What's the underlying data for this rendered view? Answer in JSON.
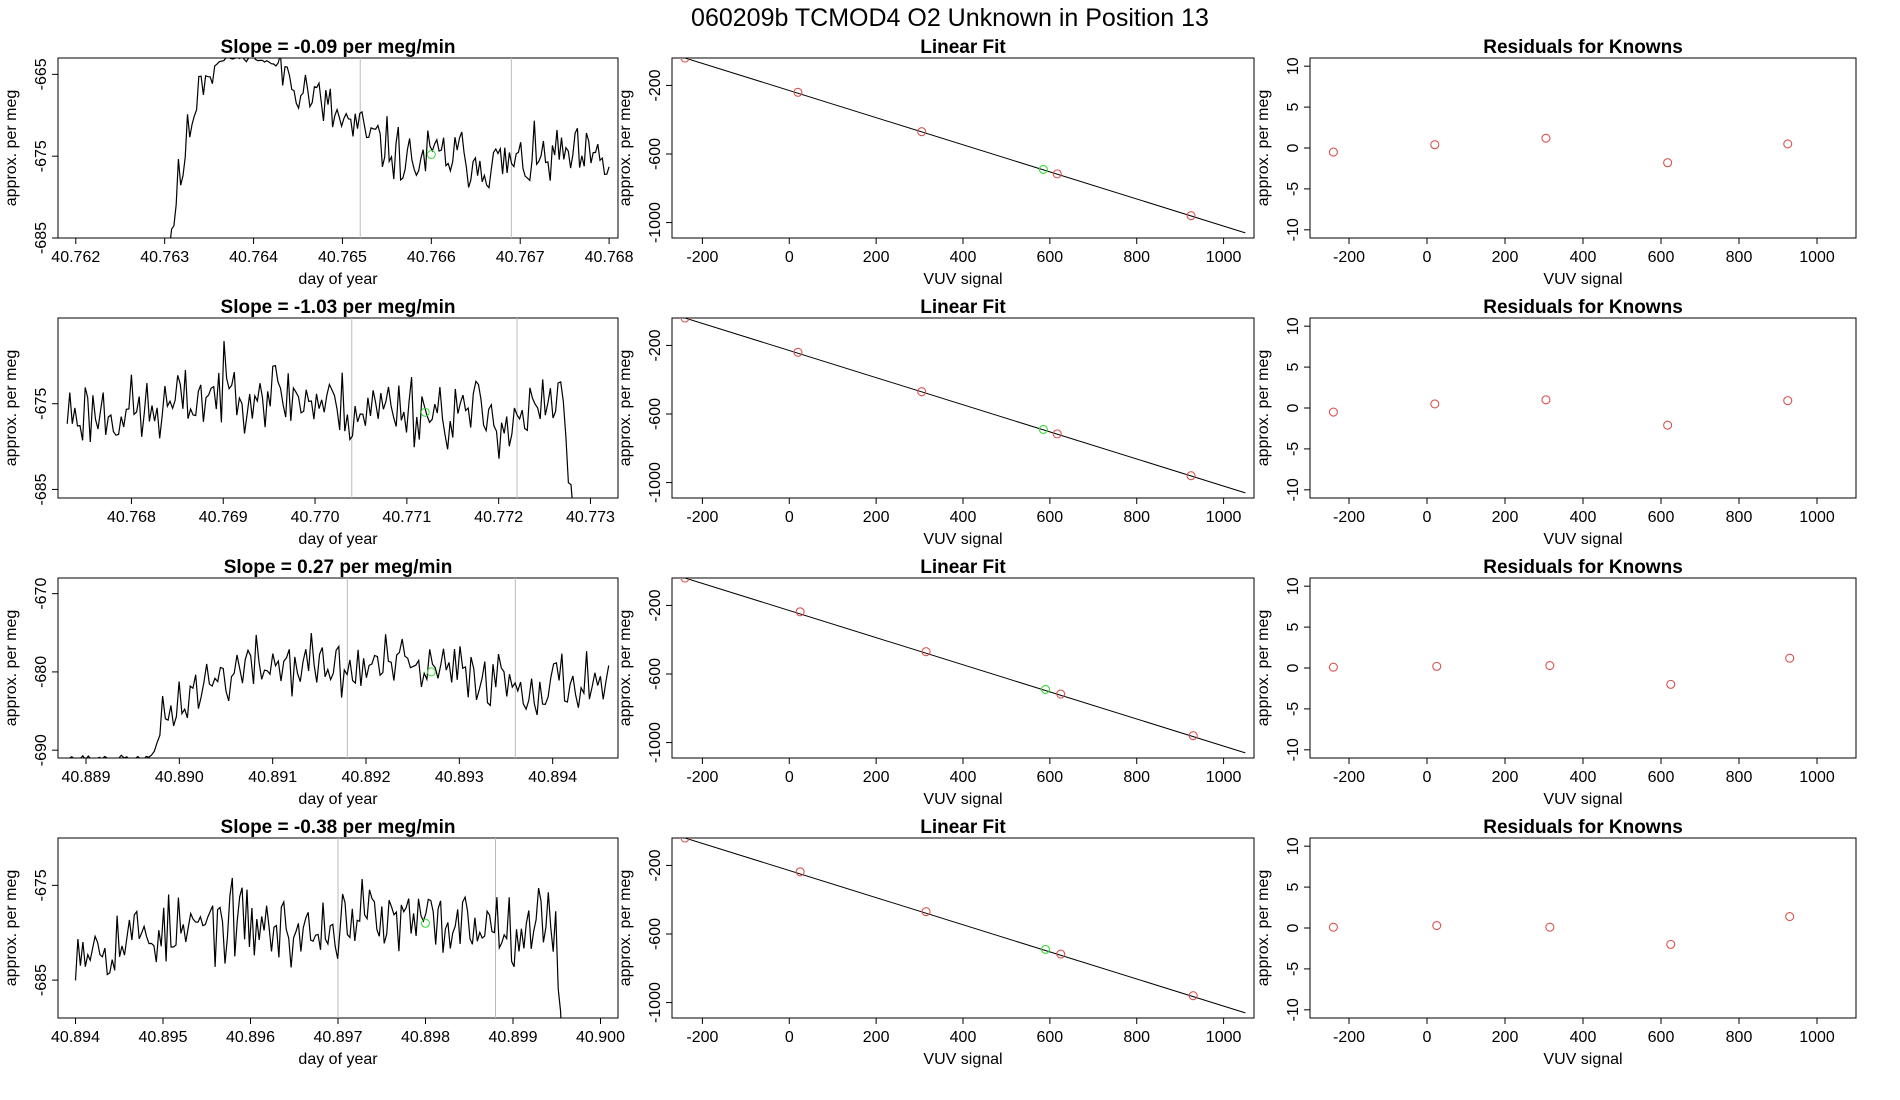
{
  "page_title": "060209b     TCMOD4    O2 Unknown in Position  13",
  "colors": {
    "known": "#d9534f",
    "unknown": "#33dd33",
    "line": "#000000",
    "vline": "#bbbbbb"
  },
  "chart_data": [
    {
      "type": "line",
      "kind": "trace",
      "title": "Slope =  -0.09  per meg/min",
      "xlabel": "day of year",
      "ylabel": "approx. per meg",
      "xlim": [
        40.7618,
        40.7681
      ],
      "ylim": [
        -685,
        -663
      ],
      "xticks": [
        "40.762",
        "40.763",
        "40.764",
        "40.765",
        "40.766",
        "40.767",
        "40.768"
      ],
      "yticks": [
        "-685",
        "-675",
        "-665"
      ],
      "vlines": [
        40.7652,
        40.7669
      ],
      "marker": [
        40.766,
        -674.8
      ],
      "x_start": 40.7629,
      "x_end": 40.768,
      "levels": [
        [
          40.7629,
          -700
        ],
        [
          40.7631,
          -682
        ],
        [
          40.7634,
          -665
        ],
        [
          40.7637,
          -663
        ],
        [
          40.764,
          -663
        ],
        [
          40.7643,
          -664
        ],
        [
          40.7646,
          -667
        ],
        [
          40.7649,
          -670
        ],
        [
          40.7652,
          -672
        ],
        [
          40.7655,
          -674
        ],
        [
          40.7658,
          -676
        ],
        [
          40.766,
          -675
        ],
        [
          40.7663,
          -675
        ],
        [
          40.7667,
          -676
        ],
        [
          40.767,
          -676
        ],
        [
          40.7675,
          -675
        ],
        [
          40.768,
          -676
        ]
      ],
      "noise": 2.2,
      "seed": 11
    },
    {
      "type": "scatter",
      "kind": "fit",
      "title": "Linear Fit",
      "xlabel": "VUV signal",
      "ylabel": "approx. per meg",
      "xlim": [
        -270,
        1070
      ],
      "ylim": [
        -1090,
        -40
      ],
      "xticks": [
        -200,
        0,
        200,
        400,
        600,
        800,
        1000
      ],
      "yticks": [
        -1000,
        -600,
        -200
      ],
      "line": [
        [
          -240,
          -40
        ],
        [
          1050,
          -1060
        ]
      ],
      "known": [
        [
          -240,
          -40
        ],
        [
          20,
          -240
        ],
        [
          305,
          -470
        ],
        [
          617,
          -716
        ],
        [
          925,
          -960
        ]
      ],
      "unknown": [
        [
          585,
          -690
        ]
      ]
    },
    {
      "type": "scatter",
      "kind": "resid",
      "title": "Residuals for Knowns",
      "xlabel": "VUV signal",
      "ylabel": "approx. per meg",
      "xlim": [
        -300,
        1100
      ],
      "ylim": [
        -11,
        11
      ],
      "xticks": [
        -200,
        0,
        200,
        400,
        600,
        800,
        1000
      ],
      "yticks": [
        -10,
        -5,
        0,
        5,
        10
      ],
      "points": [
        [
          -240,
          -0.5
        ],
        [
          20,
          0.4
        ],
        [
          305,
          1.2
        ],
        [
          617,
          -1.8
        ],
        [
          925,
          0.5
        ]
      ]
    },
    {
      "type": "line",
      "kind": "trace",
      "title": "Slope =  -1.03  per meg/min",
      "xlabel": "day of year",
      "ylabel": "approx. per meg",
      "xlim": [
        40.7672,
        40.7733
      ],
      "ylim": [
        -686,
        -665
      ],
      "xticks": [
        "40.768",
        "40.769",
        "40.770",
        "40.771",
        "40.772",
        "40.773"
      ],
      "yticks": [
        "-685",
        "-675"
      ],
      "vlines": [
        40.7704,
        40.7722
      ],
      "marker": [
        40.7712,
        -676
      ],
      "x_start": 40.7673,
      "x_end": 40.7729,
      "levels": [
        [
          40.7673,
          -676
        ],
        [
          40.7678,
          -676
        ],
        [
          40.7683,
          -676
        ],
        [
          40.7688,
          -674
        ],
        [
          40.7692,
          -673
        ],
        [
          40.7697,
          -674
        ],
        [
          40.7701,
          -675
        ],
        [
          40.7705,
          -676
        ],
        [
          40.7709,
          -675
        ],
        [
          40.7713,
          -676
        ],
        [
          40.7717,
          -676
        ],
        [
          40.7721,
          -677
        ],
        [
          40.7724,
          -676
        ],
        [
          40.7727,
          -675
        ],
        [
          40.7728,
          -686
        ],
        [
          40.7729,
          -700
        ]
      ],
      "noise": 2.6,
      "seed": 23
    },
    {
      "type": "scatter",
      "kind": "fit",
      "title": "Linear Fit",
      "xlabel": "VUV signal",
      "ylabel": "approx. per meg",
      "xlim": [
        -270,
        1070
      ],
      "ylim": [
        -1090,
        -40
      ],
      "xticks": [
        -200,
        0,
        200,
        400,
        600,
        800,
        1000
      ],
      "yticks": [
        -1000,
        -600,
        -200
      ],
      "line": [
        [
          -240,
          -40
        ],
        [
          1050,
          -1060
        ]
      ],
      "known": [
        [
          -240,
          -40
        ],
        [
          20,
          -240
        ],
        [
          305,
          -470
        ],
        [
          617,
          -716
        ],
        [
          925,
          -960
        ]
      ],
      "unknown": [
        [
          585,
          -690
        ]
      ]
    },
    {
      "type": "scatter",
      "kind": "resid",
      "title": "Residuals for Knowns",
      "xlabel": "VUV signal",
      "ylabel": "approx. per meg",
      "xlim": [
        -300,
        1100
      ],
      "ylim": [
        -11,
        11
      ],
      "xticks": [
        -200,
        0,
        200,
        400,
        600,
        800,
        1000
      ],
      "yticks": [
        -10,
        -5,
        0,
        5,
        10
      ],
      "points": [
        [
          -240,
          -0.5
        ],
        [
          20,
          0.5
        ],
        [
          305,
          1.0
        ],
        [
          617,
          -2.1
        ],
        [
          925,
          0.9
        ]
      ]
    },
    {
      "type": "line",
      "kind": "trace",
      "title": "Slope =  0.27  per meg/min",
      "xlabel": "day of year",
      "ylabel": "approx. per meg",
      "xlim": [
        40.8887,
        40.8947
      ],
      "ylim": [
        -691,
        -668
      ],
      "xticks": [
        "40.889",
        "40.890",
        "40.891",
        "40.892",
        "40.893",
        "40.894"
      ],
      "yticks": [
        "-690",
        "-680",
        "-670"
      ],
      "vlines": [
        40.8918,
        40.8936
      ],
      "marker": [
        40.8927,
        -680
      ],
      "x_start": 40.8887,
      "x_end": 40.8946,
      "levels": [
        [
          40.8887,
          -691
        ],
        [
          40.8897,
          -691
        ],
        [
          40.8898,
          -688
        ],
        [
          40.8899,
          -685
        ],
        [
          40.8902,
          -682
        ],
        [
          40.8906,
          -680
        ],
        [
          40.891,
          -679
        ],
        [
          40.8914,
          -679
        ],
        [
          40.8918,
          -680
        ],
        [
          40.8922,
          -679
        ],
        [
          40.8927,
          -680
        ],
        [
          40.8931,
          -680
        ],
        [
          40.8935,
          -681
        ],
        [
          40.8939,
          -682
        ],
        [
          40.8943,
          -681
        ],
        [
          40.8946,
          -681
        ]
      ],
      "noise": 2.4,
      "seed": 37
    },
    {
      "type": "scatter",
      "kind": "fit",
      "title": "Linear Fit",
      "xlabel": "VUV signal",
      "ylabel": "approx. per meg",
      "xlim": [
        -270,
        1070
      ],
      "ylim": [
        -1090,
        -40
      ],
      "xticks": [
        -200,
        0,
        200,
        400,
        600,
        800,
        1000
      ],
      "yticks": [
        -1000,
        -600,
        -200
      ],
      "line": [
        [
          -240,
          -40
        ],
        [
          1050,
          -1060
        ]
      ],
      "known": [
        [
          -240,
          -40
        ],
        [
          25,
          -237
        ],
        [
          315,
          -470
        ],
        [
          625,
          -717
        ],
        [
          930,
          -960
        ]
      ],
      "unknown": [
        [
          590,
          -690
        ]
      ]
    },
    {
      "type": "scatter",
      "kind": "resid",
      "title": "Residuals for Knowns",
      "xlabel": "VUV signal",
      "ylabel": "approx. per meg",
      "xlim": [
        -300,
        1100
      ],
      "ylim": [
        -11,
        11
      ],
      "xticks": [
        -200,
        0,
        200,
        400,
        600,
        800,
        1000
      ],
      "yticks": [
        -10,
        -5,
        0,
        5,
        10
      ],
      "points": [
        [
          -240,
          0.1
        ],
        [
          25,
          0.2
        ],
        [
          315,
          0.3
        ],
        [
          625,
          -2.0
        ],
        [
          930,
          1.2
        ]
      ]
    },
    {
      "type": "line",
      "kind": "trace",
      "title": "Slope =  -0.38  per meg/min",
      "xlabel": "day of year",
      "ylabel": "approx. per meg",
      "xlim": [
        40.8938,
        40.9002
      ],
      "ylim": [
        -689,
        -670
      ],
      "xticks": [
        "40.894",
        "40.895",
        "40.896",
        "40.897",
        "40.898",
        "40.899",
        "40.900"
      ],
      "yticks": [
        "-685",
        "-675"
      ],
      "vlines": [
        40.897,
        40.8988
      ],
      "marker": [
        40.898,
        -679
      ],
      "x_start": 40.894,
      "x_end": 40.8996,
      "levels": [
        [
          40.894,
          -681
        ],
        [
          40.8944,
          -681
        ],
        [
          40.8948,
          -680
        ],
        [
          40.8952,
          -680
        ],
        [
          40.8956,
          -679
        ],
        [
          40.896,
          -679
        ],
        [
          40.8964,
          -680
        ],
        [
          40.8968,
          -680
        ],
        [
          40.8972,
          -678
        ],
        [
          40.8976,
          -679
        ],
        [
          40.898,
          -679
        ],
        [
          40.8984,
          -679
        ],
        [
          40.8988,
          -679
        ],
        [
          40.8992,
          -679
        ],
        [
          40.8995,
          -679
        ],
        [
          40.8996,
          -700
        ]
      ],
      "noise": 2.4,
      "seed": 53
    },
    {
      "type": "scatter",
      "kind": "fit",
      "title": "Linear Fit",
      "xlabel": "VUV signal",
      "ylabel": "approx. per meg",
      "xlim": [
        -270,
        1070
      ],
      "ylim": [
        -1090,
        -40
      ],
      "xticks": [
        -200,
        0,
        200,
        400,
        600,
        800,
        1000
      ],
      "yticks": [
        -1000,
        -600,
        -200
      ],
      "line": [
        [
          -240,
          -40
        ],
        [
          1050,
          -1060
        ]
      ],
      "known": [
        [
          -240,
          -40
        ],
        [
          25,
          -237
        ],
        [
          315,
          -470
        ],
        [
          625,
          -717
        ],
        [
          930,
          -960
        ]
      ],
      "unknown": [
        [
          590,
          -690
        ]
      ]
    },
    {
      "type": "scatter",
      "kind": "resid",
      "title": "Residuals for Knowns",
      "xlabel": "VUV signal",
      "ylabel": "approx. per meg",
      "xlim": [
        -300,
        1100
      ],
      "ylim": [
        -11,
        11
      ],
      "xticks": [
        -200,
        0,
        200,
        400,
        600,
        800,
        1000
      ],
      "yticks": [
        -10,
        -5,
        0,
        5,
        10
      ],
      "points": [
        [
          -240,
          0.1
        ],
        [
          25,
          0.3
        ],
        [
          315,
          0.1
        ],
        [
          625,
          -2.0
        ],
        [
          930,
          1.4
        ]
      ]
    }
  ]
}
